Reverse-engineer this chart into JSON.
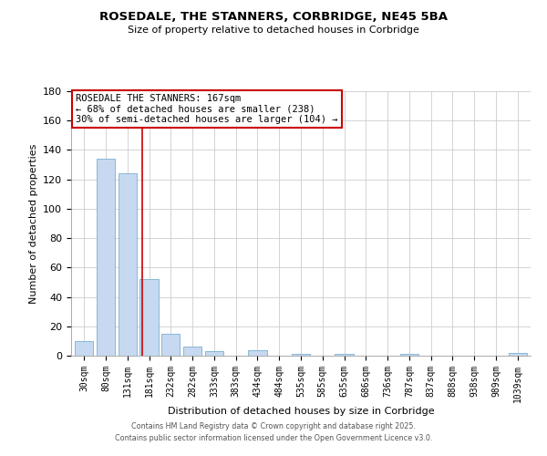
{
  "title": "ROSEDALE, THE STANNERS, CORBRIDGE, NE45 5BA",
  "subtitle": "Size of property relative to detached houses in Corbridge",
  "xlabel": "Distribution of detached houses by size in Corbridge",
  "ylabel": "Number of detached properties",
  "bar_color": "#c6d9f0",
  "bar_edgecolor": "#7bafd4",
  "categories": [
    "30sqm",
    "80sqm",
    "131sqm",
    "181sqm",
    "232sqm",
    "282sqm",
    "333sqm",
    "383sqm",
    "434sqm",
    "484sqm",
    "535sqm",
    "585sqm",
    "635sqm",
    "686sqm",
    "736sqm",
    "787sqm",
    "837sqm",
    "888sqm",
    "938sqm",
    "989sqm",
    "1039sqm"
  ],
  "values": [
    10,
    134,
    124,
    52,
    15,
    6,
    3,
    0,
    4,
    0,
    1,
    0,
    1,
    0,
    0,
    1,
    0,
    0,
    0,
    0,
    2
  ],
  "ylim": [
    0,
    180
  ],
  "yticks": [
    0,
    20,
    40,
    60,
    80,
    100,
    120,
    140,
    160,
    180
  ],
  "vline_x": 2.67,
  "vline_color": "#cc0000",
  "annotation_text": "ROSEDALE THE STANNERS: 167sqm\n← 68% of detached houses are smaller (238)\n30% of semi-detached houses are larger (104) →",
  "annotation_box_color": "#ffffff",
  "annotation_box_edgecolor": "#cc0000",
  "footer1": "Contains HM Land Registry data © Crown copyright and database right 2025.",
  "footer2": "Contains public sector information licensed under the Open Government Licence v3.0.",
  "background_color": "#ffffff",
  "grid_color": "#cccccc"
}
